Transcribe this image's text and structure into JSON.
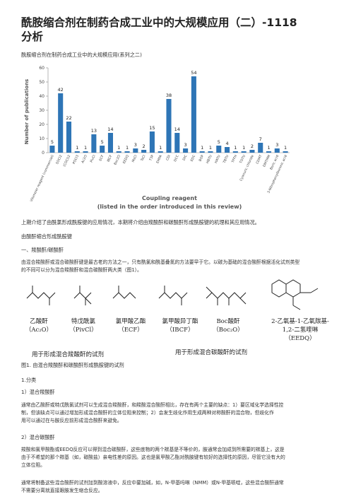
{
  "header": {
    "title": [
      "酰胺缩合剂在制药合成工业中的大规模应用（二）-1118",
      "分析"
    ],
    "subtitle": "酰胺缩合剂在制药合成工业中的大规模应用(系列之二)"
  },
  "chart_data": {
    "type": "bar",
    "y_label": "Number of publications",
    "x_label": [
      "Coupling reagent",
      "(listed in the order introduced in this review)"
    ],
    "categories": [
      "Vilsmeier reagent (commercial)",
      "SOCl2",
      "(COCl)2",
      "POCl3",
      "Ac2O",
      "PivCl",
      "ECF",
      "IBCF",
      "Boc2O",
      "EEDQ",
      "MsCl",
      "TsCl",
      "T3P",
      "EMPA",
      "CDI",
      "DCC",
      "DIC",
      "EDC",
      "BOP",
      "HBTU",
      "HATU",
      "TBTU",
      "TFFH",
      "TOTU",
      "Cyanuric chloride",
      "CDMT",
      "DMTMM",
      "Boric acid",
      "3-Nitrophenylboronic acid"
    ],
    "values": [
      5,
      42,
      22,
      1,
      1,
      13,
      5,
      14,
      1,
      1,
      3,
      2,
      15,
      1,
      38,
      14,
      3,
      54,
      1,
      1,
      5,
      4,
      1,
      1,
      2,
      7,
      1,
      3,
      1
    ],
    "color": "#2e75b6",
    "ylim": [
      0,
      60
    ],
    "yticks": [
      0,
      10,
      20,
      30,
      40,
      50,
      60
    ]
  },
  "intro": "上期介绍了由酰氯形成酰胺键的应用情况，本期将介绍由羧酸酐和碳酸酐形成酰胺键的机理和其应用情况。",
  "heading1": "由酸酐缩合形成酰胺键",
  "heading2": "一、羧酸酐/碳酸酐",
  "para1": [
    "由混合羧酸酐或混合碳酸酐键是最古老的方法之一，只有酰氯和酰基叠氮的方法要早于它。以碳为基础的混合酸酐根据活化试剂类型",
    "的不同可以分为混合羧酸酐和混合碳酸酐两大类（图1）。"
  ],
  "scheme": {
    "reagents": [
      [
        "乙酸酐",
        "（Ac₂O）"
      ],
      [
        "特戊酰氯",
        "（PivCl）"
      ],
      [
        "氯甲酸乙酯",
        "（ECF）"
      ],
      [
        "氯甲酸异丁酯",
        "（IBCF）"
      ],
      [
        "Boc酸酐",
        "（Boc₂O）"
      ],
      [
        "2-乙氧基-1-乙氧羰基-",
        "1,2-二氢喹啉",
        "（EEDQ）"
      ]
    ],
    "group1": "用于形成混合羧酸酐的试剂",
    "group2": "用于形成混合碳酸酐的试剂"
  },
  "caption": "图1. 由混合羧酸酐和碳酸酐形成酰胺键的试剂",
  "section": "1.分类",
  "sub1": "1）混合羧酸酐",
  "para2": [
    "通常由乙酸酐或特戊酰氯试剂可以生成混合羧酸酐，和羧酸混合酸酐相比，存在有两个主要的缺点：1）要区域化学选择性控",
    "制，但该缺点可以通过增加形成混合酸酐的立体位阻来控制；2）会发生歧化作用生成两种对称酸酐的混合物，但歧化作",
    "用可以通过在与胺反应前形成混合酸酐来避免。"
  ],
  "sub2": "2）混合碳酸酐",
  "para3": [
    "羧酸和氯甲酸酯或EEDQ反应可以得到混合碳酸酐，这些底物的两个羰基是不等价的，胺通常会加成到所需要的羰基上，这是",
    "由于不希望的那个羰基（如，碳酸盐）亲电性差的原因。这也是氯甲酸乙酯对酰胺键有较好的选择性的原因，尽管它没有大的",
    "立体位阻。"
  ],
  "para4": [
    "通常将制备这些混合酸酐的试剂加到酸溶液中，反应中要加碱，如，N-甲基吗啉（NMM）或N-甲基哌啶，这些混合酸酐通常",
    "不需要分离就直接跟胺发生缩合反应。"
  ]
}
